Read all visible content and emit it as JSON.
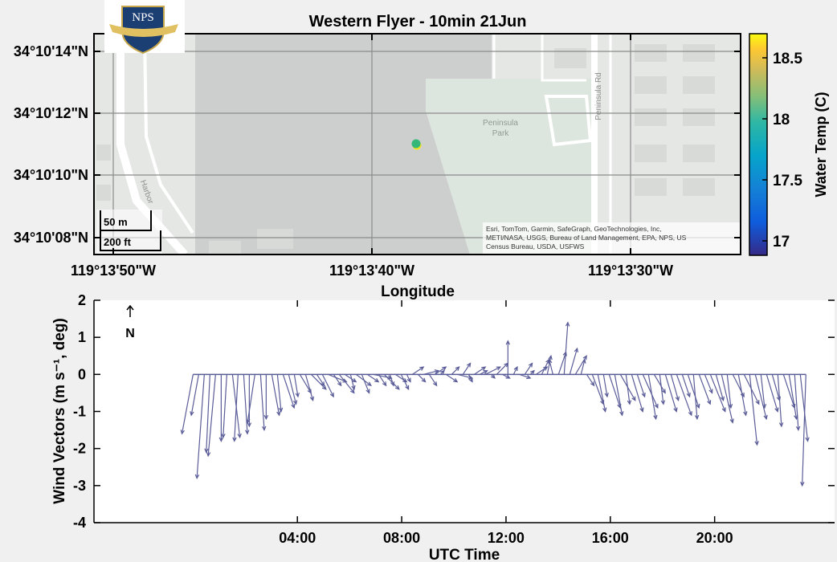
{
  "logo": {
    "text": "NPS"
  },
  "map": {
    "title": "Western Flyer - 10min 21Jun",
    "xlabel": "Longitude",
    "lat_ticks": [
      "34°10'14\"N",
      "34°10'12\"N",
      "34°10'10\"N",
      "34°10'08\"N"
    ],
    "lon_ticks": [
      "119°13'50\"W",
      "119°13'40\"W",
      "119°13'30\"W"
    ],
    "labels": {
      "park_line1": "Peninsula",
      "park_line2": "Park",
      "road": "Peninsula Rd",
      "harbor": "Harbor"
    },
    "scale_bar": {
      "metric": "50 m",
      "imperial": "200 ft"
    },
    "attribution": {
      "line1": "Esri, TomTom, Garmin, SafeGraph, GeoTechnologies, Inc,",
      "line2": "METI/NASA, USGS, Bureau of Land Management, EPA, NPS, US",
      "line3": "Census Bureau, USDA, USFWS"
    },
    "colorbar": {
      "label": "Water Temp (C)",
      "ticks": [
        "18.5",
        "18",
        "17.5",
        "17"
      ],
      "range": [
        16.9,
        18.7
      ]
    },
    "colors": {
      "marker_fill": "#35b779",
      "marker_edge": "#f2e51d"
    }
  },
  "chart_data": [
    {
      "type": "scatter",
      "title": "Western Flyer - 10min 21Jun",
      "xlabel": "Longitude",
      "ylabel": "",
      "x_ticks": [
        "119°13'50\"W",
        "119°13'40\"W",
        "119°13'30\"W"
      ],
      "y_ticks": [
        "34°10'14\"N",
        "34°10'12\"N",
        "34°10'10\"N",
        "34°10'08\"N"
      ],
      "points": [
        {
          "lon": "119°13'38.3\"W",
          "lat": "34°10'10.9\"N",
          "temp_c": 18.0
        }
      ],
      "colorbar_label": "Water Temp (C)"
    },
    {
      "type": "quiver",
      "title": "",
      "xlabel": "UTC Time",
      "ylabel": "Wind  Vectors  (m  s⁻¹,  deg)",
      "xlim_hours": [
        -3.8,
        24.6
      ],
      "ylim": [
        -4,
        2
      ],
      "x_ticks": [
        "04:00",
        "08:00",
        "12:00",
        "16:00",
        "20:00"
      ],
      "y_ticks": [
        "2",
        "1",
        "0",
        "-1",
        "-2",
        "-3",
        "-4"
      ],
      "north_label": "N",
      "color": "#5a5c98",
      "series": [
        {
          "values_u_v": [
            [
              -0.3,
              -1.6
            ],
            [
              -0.2,
              -1.1
            ],
            [
              -0.2,
              -2.8
            ],
            [
              -0.1,
              -2.1
            ],
            [
              -0.2,
              -2.2
            ],
            [
              0.0,
              -1.8
            ],
            [
              -0.1,
              -1.7
            ],
            [
              0.2,
              -1.7
            ],
            [
              -0.1,
              -1.8
            ],
            [
              0.1,
              -1.6
            ],
            [
              0.0,
              -1.4
            ],
            [
              -0.2,
              -1.3
            ],
            [
              0.1,
              -1.5
            ],
            [
              0.0,
              -1.2
            ],
            [
              0.2,
              -1.1
            ],
            [
              0.1,
              -1.0
            ],
            [
              0.3,
              -0.9
            ],
            [
              0.2,
              -0.8
            ],
            [
              0.1,
              -0.6
            ],
            [
              0.3,
              -0.5
            ],
            [
              0.2,
              -0.7
            ],
            [
              0.4,
              -0.4
            ],
            [
              0.2,
              -0.3
            ],
            [
              0.3,
              -0.6
            ],
            [
              0.5,
              -0.2
            ],
            [
              0.2,
              -0.3
            ],
            [
              0.4,
              -0.5
            ],
            [
              0.3,
              -0.2
            ],
            [
              0.1,
              -0.4
            ],
            [
              0.4,
              -0.3
            ],
            [
              0.2,
              -0.5
            ],
            [
              0.3,
              -0.2
            ],
            [
              0.5,
              -0.1
            ],
            [
              0.2,
              -0.3
            ],
            [
              0.4,
              -0.4
            ],
            [
              0.1,
              -0.3
            ],
            [
              0.3,
              -0.2
            ],
            [
              0.2,
              -0.4
            ],
            [
              0.1,
              -0.2
            ],
            [
              0.3,
              0.2
            ],
            [
              0.2,
              -0.2
            ],
            [
              0.4,
              0.1
            ],
            [
              0.2,
              -0.3
            ],
            [
              0.3,
              0.2
            ],
            [
              0.1,
              0.1
            ],
            [
              0.3,
              -0.2
            ],
            [
              0.2,
              0.2
            ],
            [
              0.4,
              -0.1
            ],
            [
              0.2,
              0.3
            ],
            [
              0.1,
              -0.2
            ],
            [
              0.3,
              0.2
            ],
            [
              0.2,
              0.1
            ],
            [
              0.4,
              0.2
            ],
            [
              0.1,
              -0.1
            ],
            [
              0.3,
              0.3
            ],
            [
              0.2,
              -0.1
            ],
            [
              0.0,
              0.9
            ],
            [
              0.1,
              0.2
            ],
            [
              0.3,
              -0.1
            ],
            [
              0.2,
              0.3
            ],
            [
              0.1,
              0.1
            ],
            [
              0.3,
              0.2
            ],
            [
              0.2,
              0.4
            ],
            [
              0.1,
              0.5
            ],
            [
              -0.1,
              0.4
            ],
            [
              0.2,
              0.6
            ],
            [
              0.1,
              1.4
            ],
            [
              0.2,
              0.7
            ],
            [
              0.3,
              0.5
            ],
            [
              0.1,
              0.4
            ],
            [
              0.2,
              -0.3
            ],
            [
              0.3,
              -0.8
            ],
            [
              0.2,
              -1.0
            ],
            [
              0.1,
              -0.6
            ],
            [
              0.3,
              -0.9
            ],
            [
              0.2,
              -1.1
            ],
            [
              0.4,
              -0.7
            ],
            [
              0.1,
              -0.8
            ],
            [
              0.3,
              -1.0
            ],
            [
              0.2,
              -0.6
            ],
            [
              0.4,
              -0.9
            ],
            [
              0.2,
              -1.2
            ],
            [
              0.3,
              -0.5
            ],
            [
              0.1,
              -0.8
            ],
            [
              0.3,
              -1.0
            ],
            [
              0.2,
              -0.7
            ],
            [
              0.4,
              -1.1
            ],
            [
              0.2,
              -0.6
            ],
            [
              0.3,
              -0.9
            ],
            [
              0.1,
              -1.2
            ],
            [
              0.3,
              -0.8
            ],
            [
              0.2,
              -0.5
            ],
            [
              0.4,
              -1.0
            ],
            [
              0.2,
              -0.7
            ],
            [
              0.3,
              -1.3
            ],
            [
              0.1,
              -0.9
            ],
            [
              0.3,
              -0.6
            ],
            [
              0.2,
              -1.1
            ],
            [
              0.4,
              -0.8
            ],
            [
              0.2,
              -1.9
            ],
            [
              0.3,
              -1.2
            ],
            [
              0.1,
              -0.9
            ],
            [
              0.3,
              -1.0
            ],
            [
              0.2,
              -0.7
            ],
            [
              0.1,
              -1.4
            ],
            [
              0.3,
              -0.9
            ],
            [
              0.2,
              -1.2
            ],
            [
              0.1,
              -1.5
            ],
            [
              0.2,
              -1.8
            ],
            [
              -0.1,
              -3.0
            ]
          ]
        }
      ]
    }
  ]
}
